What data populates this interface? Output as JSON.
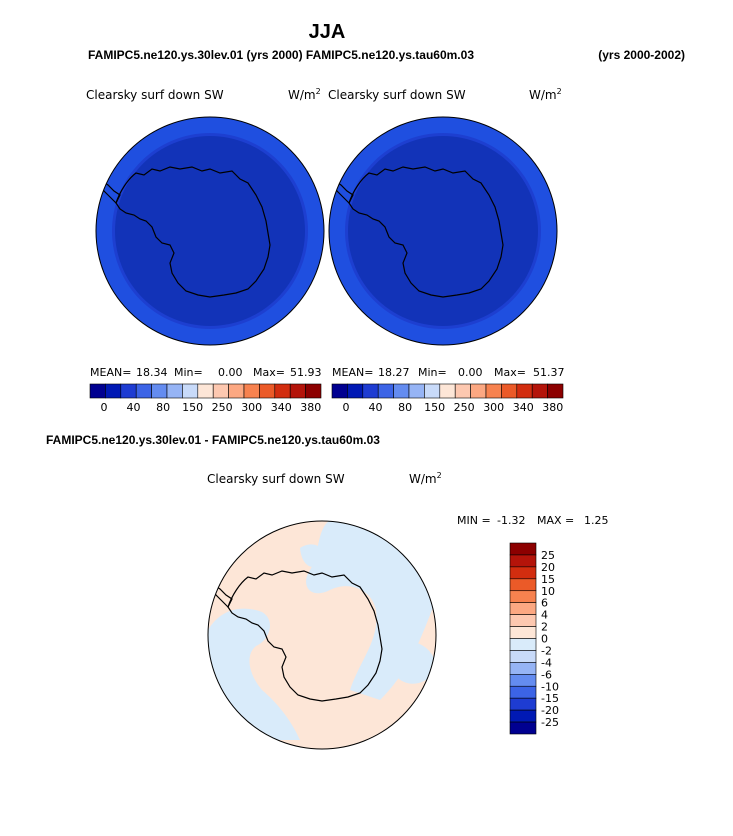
{
  "figure": {
    "title": "JJA",
    "case_line_overlap": "FAMIPC5.ne120.ys.30lev.01 (yrs 2000) FAMIPC5.ne120.ys.tau60m.03",
    "case_line_visible": "FAMIPC5.ne120.ys.30lev01 (yrs 2000) ys.tau60m.03",
    "years": "(yrs 2000-2002)",
    "diff_title": "FAMIPC5.ne120.ys.30lev.01 - FAMIPC5.ne120.ys.tau60m.03"
  },
  "chart_data": [
    {
      "type": "heatmap",
      "projection": "south polar stereographic",
      "variable": "Clearsky surf down SW",
      "units": "W/m",
      "units_exp": "2",
      "stats": {
        "mean_label": "MEAN=",
        "mean": "18.34",
        "min_label": "Min=",
        "min": "0.00",
        "max_label": "Max=",
        "max": "51.93"
      },
      "rings": [
        {
          "label": "outer",
          "value_range": "40-80",
          "color": "#1f4fe0"
        },
        {
          "label": "middle",
          "value_range": "0-40",
          "color": "#1d3fd0"
        },
        {
          "label": "inner",
          "value_range": "0",
          "color": "#1233b8"
        }
      ],
      "colorbar": {
        "tick_labels": [
          "0",
          "40",
          "80",
          "150",
          "250",
          "300",
          "340",
          "380"
        ],
        "colors": [
          "#000090",
          "#0019b4",
          "#1e3cd2",
          "#3c64e6",
          "#648cf0",
          "#96b4f5",
          "#c8daf9",
          "#fde6d7",
          "#fdc8b0",
          "#fca882",
          "#f7824f",
          "#eb5a28",
          "#d22d0f",
          "#b4140a",
          "#8c0000"
        ]
      }
    },
    {
      "type": "heatmap",
      "projection": "south polar stereographic",
      "variable": "Clearsky surf down SW",
      "units": "W/m",
      "units_exp": "2",
      "stats": {
        "mean_label": "MEAN=",
        "mean": "18.27",
        "min_label": "Min=",
        "min": "0.00",
        "max_label": "Max=",
        "max": "51.37"
      },
      "rings": [
        {
          "label": "outer",
          "value_range": "40-80",
          "color": "#1f4fe0"
        },
        {
          "label": "middle",
          "value_range": "0-40",
          "color": "#1d3fd0"
        },
        {
          "label": "inner",
          "value_range": "0",
          "color": "#1233b8"
        }
      ],
      "colorbar": {
        "tick_labels": [
          "0",
          "40",
          "80",
          "150",
          "250",
          "300",
          "340",
          "380"
        ],
        "colors": [
          "#000090",
          "#0019b4",
          "#1e3cd2",
          "#3c64e6",
          "#648cf0",
          "#96b4f5",
          "#c8daf9",
          "#fde6d7",
          "#fdc8b0",
          "#fca882",
          "#f7824f",
          "#eb5a28",
          "#d22d0f",
          "#b4140a",
          "#8c0000"
        ]
      }
    },
    {
      "type": "heatmap",
      "projection": "south polar stereographic",
      "variable": "Clearsky surf down SW",
      "units": "W/m",
      "units_exp": "2",
      "stats": {
        "min_label": "MIN =",
        "min": "-1.32",
        "max_label": "MAX =",
        "max": "1.25"
      },
      "background_color": "#fde6d7",
      "patch_color": "#d9ebfa",
      "colorbar": {
        "orientation": "vertical",
        "tick_labels": [
          "25",
          "20",
          "15",
          "10",
          "6",
          "4",
          "2",
          "0",
          "-2",
          "-4",
          "-6",
          "-10",
          "-15",
          "-20",
          "-25"
        ],
        "colors": [
          "#8c0000",
          "#b4140a",
          "#d22d0f",
          "#eb5a28",
          "#f7824f",
          "#fca882",
          "#fdc8b0",
          "#fde6d7",
          "#d9ebfa",
          "#c8daf9",
          "#96b4f5",
          "#648cf0",
          "#3c64e6",
          "#1e3cd2",
          "#0019b4",
          "#000090"
        ]
      }
    }
  ]
}
